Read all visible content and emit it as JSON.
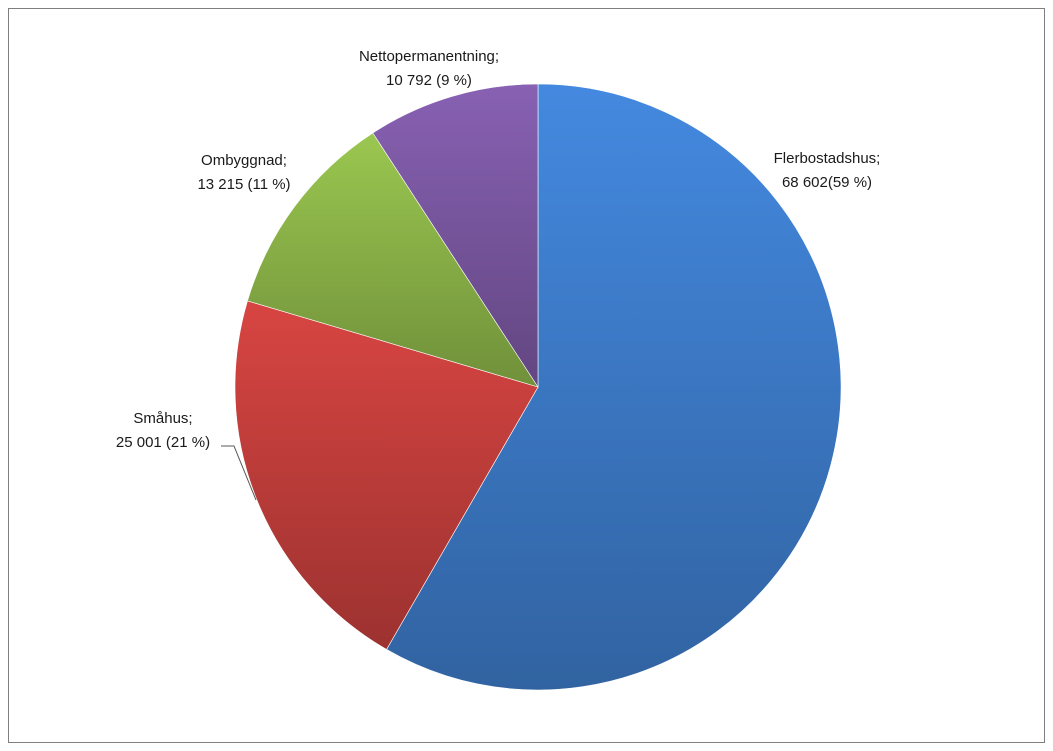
{
  "chart_data": {
    "type": "pie",
    "title": "",
    "slices": [
      {
        "name": "Flerbostadshus",
        "value": 68602,
        "percent": 59,
        "color": "#3f7fcf",
        "label_line1": "Flerbostadshus;",
        "label_line2": "68 602(59 %)"
      },
      {
        "name": "Småhus",
        "value": 25001,
        "percent": 21,
        "color": "#c8403d",
        "label_line1": "Småhus;",
        "label_line2": "25 001 (21 %)"
      },
      {
        "name": "Ombyggnad",
        "value": 13215,
        "percent": 11,
        "color": "#8fb84a",
        "label_line1": "Ombyggnad;",
        "label_line2": "13 215 (11 %)"
      },
      {
        "name": "Nettopermanentning",
        "value": 10792,
        "percent": 9,
        "color": "#7e5aa6",
        "label_line1": "Nettopermanentning;",
        "label_line2": "10 792 (9 %)"
      }
    ],
    "legend": "none"
  }
}
